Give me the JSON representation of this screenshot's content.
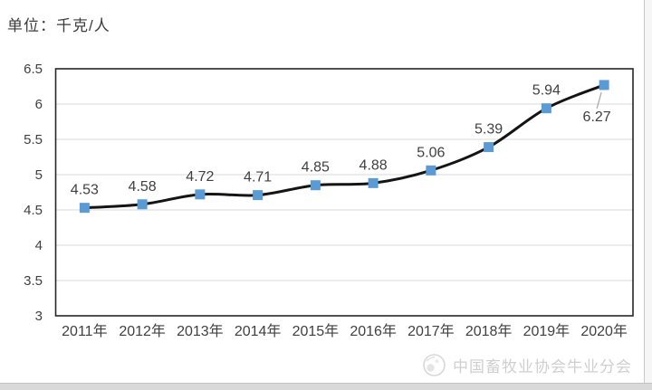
{
  "page": {
    "unit_label": "单位：千克/人",
    "watermark_text": "中国畜牧业协会牛业分会",
    "background": "#ffffff"
  },
  "chart_data": {
    "type": "line",
    "categories": [
      "2011年",
      "2012年",
      "2013年",
      "2014年",
      "2015年",
      "2016年",
      "2017年",
      "2018年",
      "2019年",
      "2020年"
    ],
    "values": [
      4.53,
      4.58,
      4.72,
      4.71,
      4.85,
      4.88,
      5.06,
      5.39,
      5.94,
      6.27
    ],
    "data_labels": [
      "4.53",
      "4.58",
      "4.72",
      "4.71",
      "4.85",
      "4.88",
      "5.06",
      "5.39",
      "5.94",
      "6.27"
    ],
    "unit": "千克/人",
    "ylim": [
      3,
      6.5
    ],
    "yticks": [
      6.5,
      6,
      5.5,
      5,
      4.5,
      4,
      3.5,
      3
    ],
    "ytick_labels": [
      "6.5",
      "6",
      "5.5",
      "5",
      "4.5",
      "4",
      "3.5",
      "3"
    ],
    "grid": true,
    "legend": "none",
    "smoothed_line": true,
    "colors": {
      "line": "#141414",
      "marker": "#5b9bd5",
      "grid": "#d9d9d9",
      "axis_border": "#262626",
      "label_text": "#404040",
      "leader_line": "#a6a6a6"
    }
  }
}
